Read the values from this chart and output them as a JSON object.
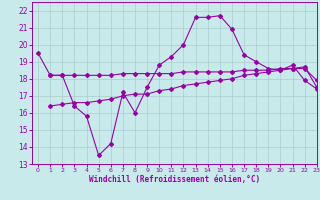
{
  "title": "",
  "xlabel": "Windchill (Refroidissement éolien,°C)",
  "background_color": "#c8eaea",
  "line_color": "#9900aa",
  "grid_color": "#aacccc",
  "xlim": [
    -0.5,
    23
  ],
  "ylim": [
    13,
    22.5
  ],
  "xticks": [
    0,
    1,
    2,
    3,
    4,
    5,
    6,
    7,
    8,
    9,
    10,
    11,
    12,
    13,
    14,
    15,
    16,
    17,
    18,
    19,
    20,
    21,
    22,
    23
  ],
  "yticks": [
    13,
    14,
    15,
    16,
    17,
    18,
    19,
    20,
    21,
    22
  ],
  "curve1_x": [
    0,
    1,
    2,
    3,
    4,
    5,
    6,
    7,
    8,
    9,
    10,
    11,
    12,
    13,
    14,
    15,
    16,
    17,
    18,
    19,
    20,
    21,
    22,
    23
  ],
  "curve1_y": [
    19.5,
    18.2,
    18.2,
    16.4,
    15.8,
    13.5,
    14.2,
    17.2,
    16.0,
    17.5,
    18.8,
    19.3,
    20.0,
    21.6,
    21.6,
    21.7,
    20.9,
    19.4,
    19.0,
    18.6,
    18.5,
    18.8,
    17.9,
    17.4
  ],
  "curve2_x": [
    1,
    2,
    3,
    4,
    5,
    6,
    7,
    8,
    9,
    10,
    11,
    12,
    13,
    14,
    15,
    16,
    17,
    18,
    19,
    20,
    21,
    22,
    23
  ],
  "curve2_y": [
    18.2,
    18.2,
    18.2,
    18.2,
    18.2,
    18.2,
    18.3,
    18.3,
    18.3,
    18.3,
    18.3,
    18.4,
    18.4,
    18.4,
    18.4,
    18.4,
    18.5,
    18.5,
    18.5,
    18.6,
    18.6,
    18.6,
    17.9
  ],
  "curve3_x": [
    1,
    2,
    3,
    4,
    5,
    6,
    7,
    8,
    9,
    10,
    11,
    12,
    13,
    14,
    15,
    16,
    17,
    18,
    19,
    20,
    21,
    22,
    23
  ],
  "curve3_y": [
    16.4,
    16.5,
    16.6,
    16.6,
    16.7,
    16.8,
    17.0,
    17.1,
    17.1,
    17.3,
    17.4,
    17.6,
    17.7,
    17.8,
    17.9,
    18.0,
    18.2,
    18.3,
    18.4,
    18.5,
    18.6,
    18.7,
    17.5
  ],
  "marker": "D",
  "markersize": 2.0,
  "linewidth": 0.8
}
